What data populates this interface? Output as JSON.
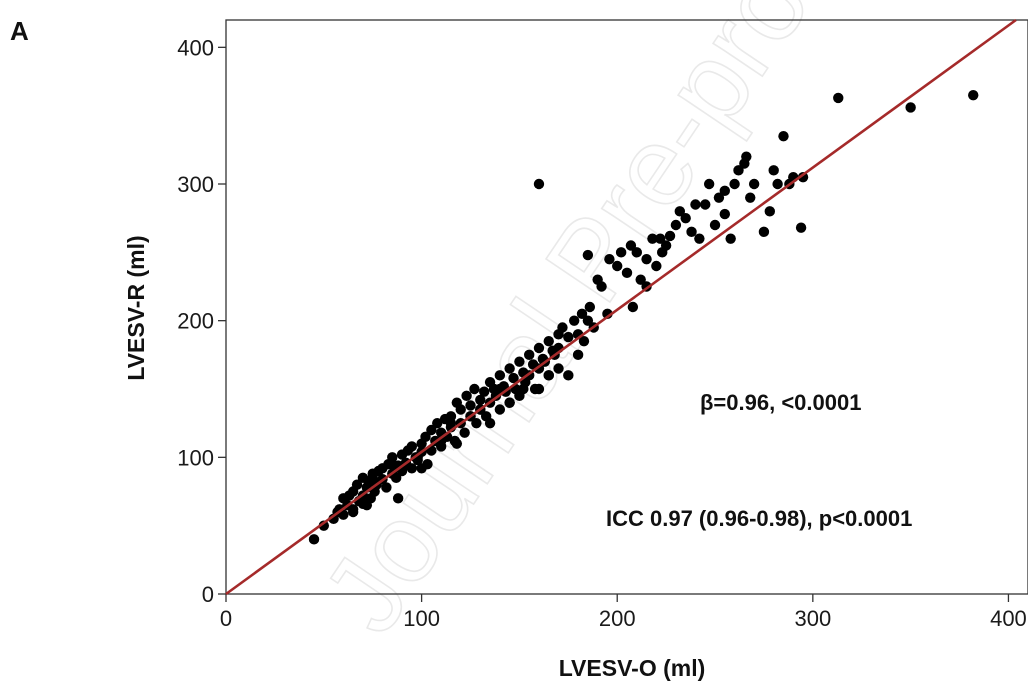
{
  "panel_label": "A",
  "watermark": "Journal Pre-proof",
  "colors": {
    "points": "#000000",
    "fit_line": "#a52a2a",
    "frame": "#333333"
  },
  "chart_data": {
    "type": "scatter",
    "xlabel": "LVESV-O (ml)",
    "ylabel": "LVESV-R (ml)",
    "xlim": [
      0,
      410
    ],
    "ylim": [
      0,
      420
    ],
    "xticks": [
      0,
      100,
      200,
      300,
      400
    ],
    "yticks": [
      0,
      100,
      200,
      300,
      400
    ],
    "grid": false,
    "annotations": [
      "β=0.96, <0.0001",
      "ICC 0.97 (0.96-0.98), p<0.0001"
    ],
    "fit_line": {
      "slope": 1.04,
      "intercept": 0
    },
    "x": [
      45,
      50,
      55,
      57,
      58,
      60,
      60,
      62,
      63,
      65,
      65,
      67,
      68,
      70,
      70,
      72,
      73,
      74,
      75,
      76,
      77,
      78,
      80,
      80,
      82,
      83,
      85,
      85,
      87,
      88,
      90,
      90,
      92,
      93,
      95,
      95,
      97,
      98,
      100,
      100,
      102,
      103,
      105,
      105,
      107,
      108,
      110,
      110,
      112,
      113,
      115,
      115,
      117,
      118,
      120,
      120,
      122,
      123,
      125,
      125,
      127,
      128,
      130,
      130,
      132,
      133,
      135,
      135,
      137,
      138,
      140,
      140,
      142,
      143,
      145,
      145,
      147,
      148,
      150,
      150,
      152,
      153,
      155,
      155,
      157,
      158,
      160,
      160,
      162,
      163,
      165,
      165,
      167,
      168,
      170,
      170,
      172,
      175,
      175,
      178,
      180,
      182,
      183,
      185,
      186,
      188,
      190,
      192,
      195,
      196,
      200,
      202,
      205,
      207,
      210,
      212,
      215,
      215,
      218,
      220,
      222,
      223,
      225,
      227,
      230,
      232,
      235,
      238,
      240,
      242,
      245,
      247,
      250,
      252,
      255,
      255,
      258,
      260,
      262,
      265,
      266,
      268,
      270,
      275,
      278,
      280,
      282,
      285,
      288,
      290,
      294,
      295,
      313,
      350,
      382,
      160,
      72,
      88,
      98,
      118,
      130,
      140,
      152,
      165,
      180,
      208,
      75,
      85,
      100,
      115,
      125,
      135,
      145,
      160,
      170,
      185,
      65,
      70,
      90,
      110
    ],
    "y": [
      40,
      50,
      55,
      60,
      62,
      58,
      70,
      65,
      72,
      75,
      60,
      80,
      68,
      85,
      72,
      78,
      82,
      70,
      88,
      75,
      80,
      90,
      84,
      92,
      78,
      95,
      88,
      100,
      85,
      94,
      102,
      90,
      96,
      105,
      92,
      108,
      100,
      98,
      110,
      104,
      115,
      95,
      120,
      105,
      112,
      125,
      108,
      118,
      128,
      115,
      122,
      130,
      112,
      140,
      125,
      135,
      118,
      145,
      130,
      138,
      150,
      125,
      142,
      135,
      148,
      130,
      155,
      140,
      150,
      145,
      160,
      135,
      152,
      148,
      165,
      140,
      158,
      150,
      170,
      145,
      162,
      155,
      175,
      160,
      168,
      150,
      180,
      165,
      172,
      170,
      185,
      160,
      178,
      175,
      190,
      180,
      195,
      188,
      160,
      200,
      190,
      205,
      185,
      248,
      210,
      195,
      230,
      225,
      205,
      245,
      240,
      250,
      235,
      255,
      250,
      230,
      245,
      225,
      260,
      240,
      260,
      250,
      255,
      262,
      270,
      280,
      275,
      265,
      285,
      260,
      285,
      300,
      270,
      290,
      295,
      278,
      260,
      300,
      310,
      315,
      320,
      290,
      300,
      265,
      280,
      310,
      300,
      335,
      300,
      305,
      268,
      305,
      363,
      356,
      365,
      300,
      65,
      70,
      100,
      110,
      135,
      150,
      150,
      160,
      175,
      210,
      85,
      95,
      92,
      125,
      130,
      125,
      140,
      150,
      165,
      200,
      62,
      66,
      92,
      112
    ]
  }
}
